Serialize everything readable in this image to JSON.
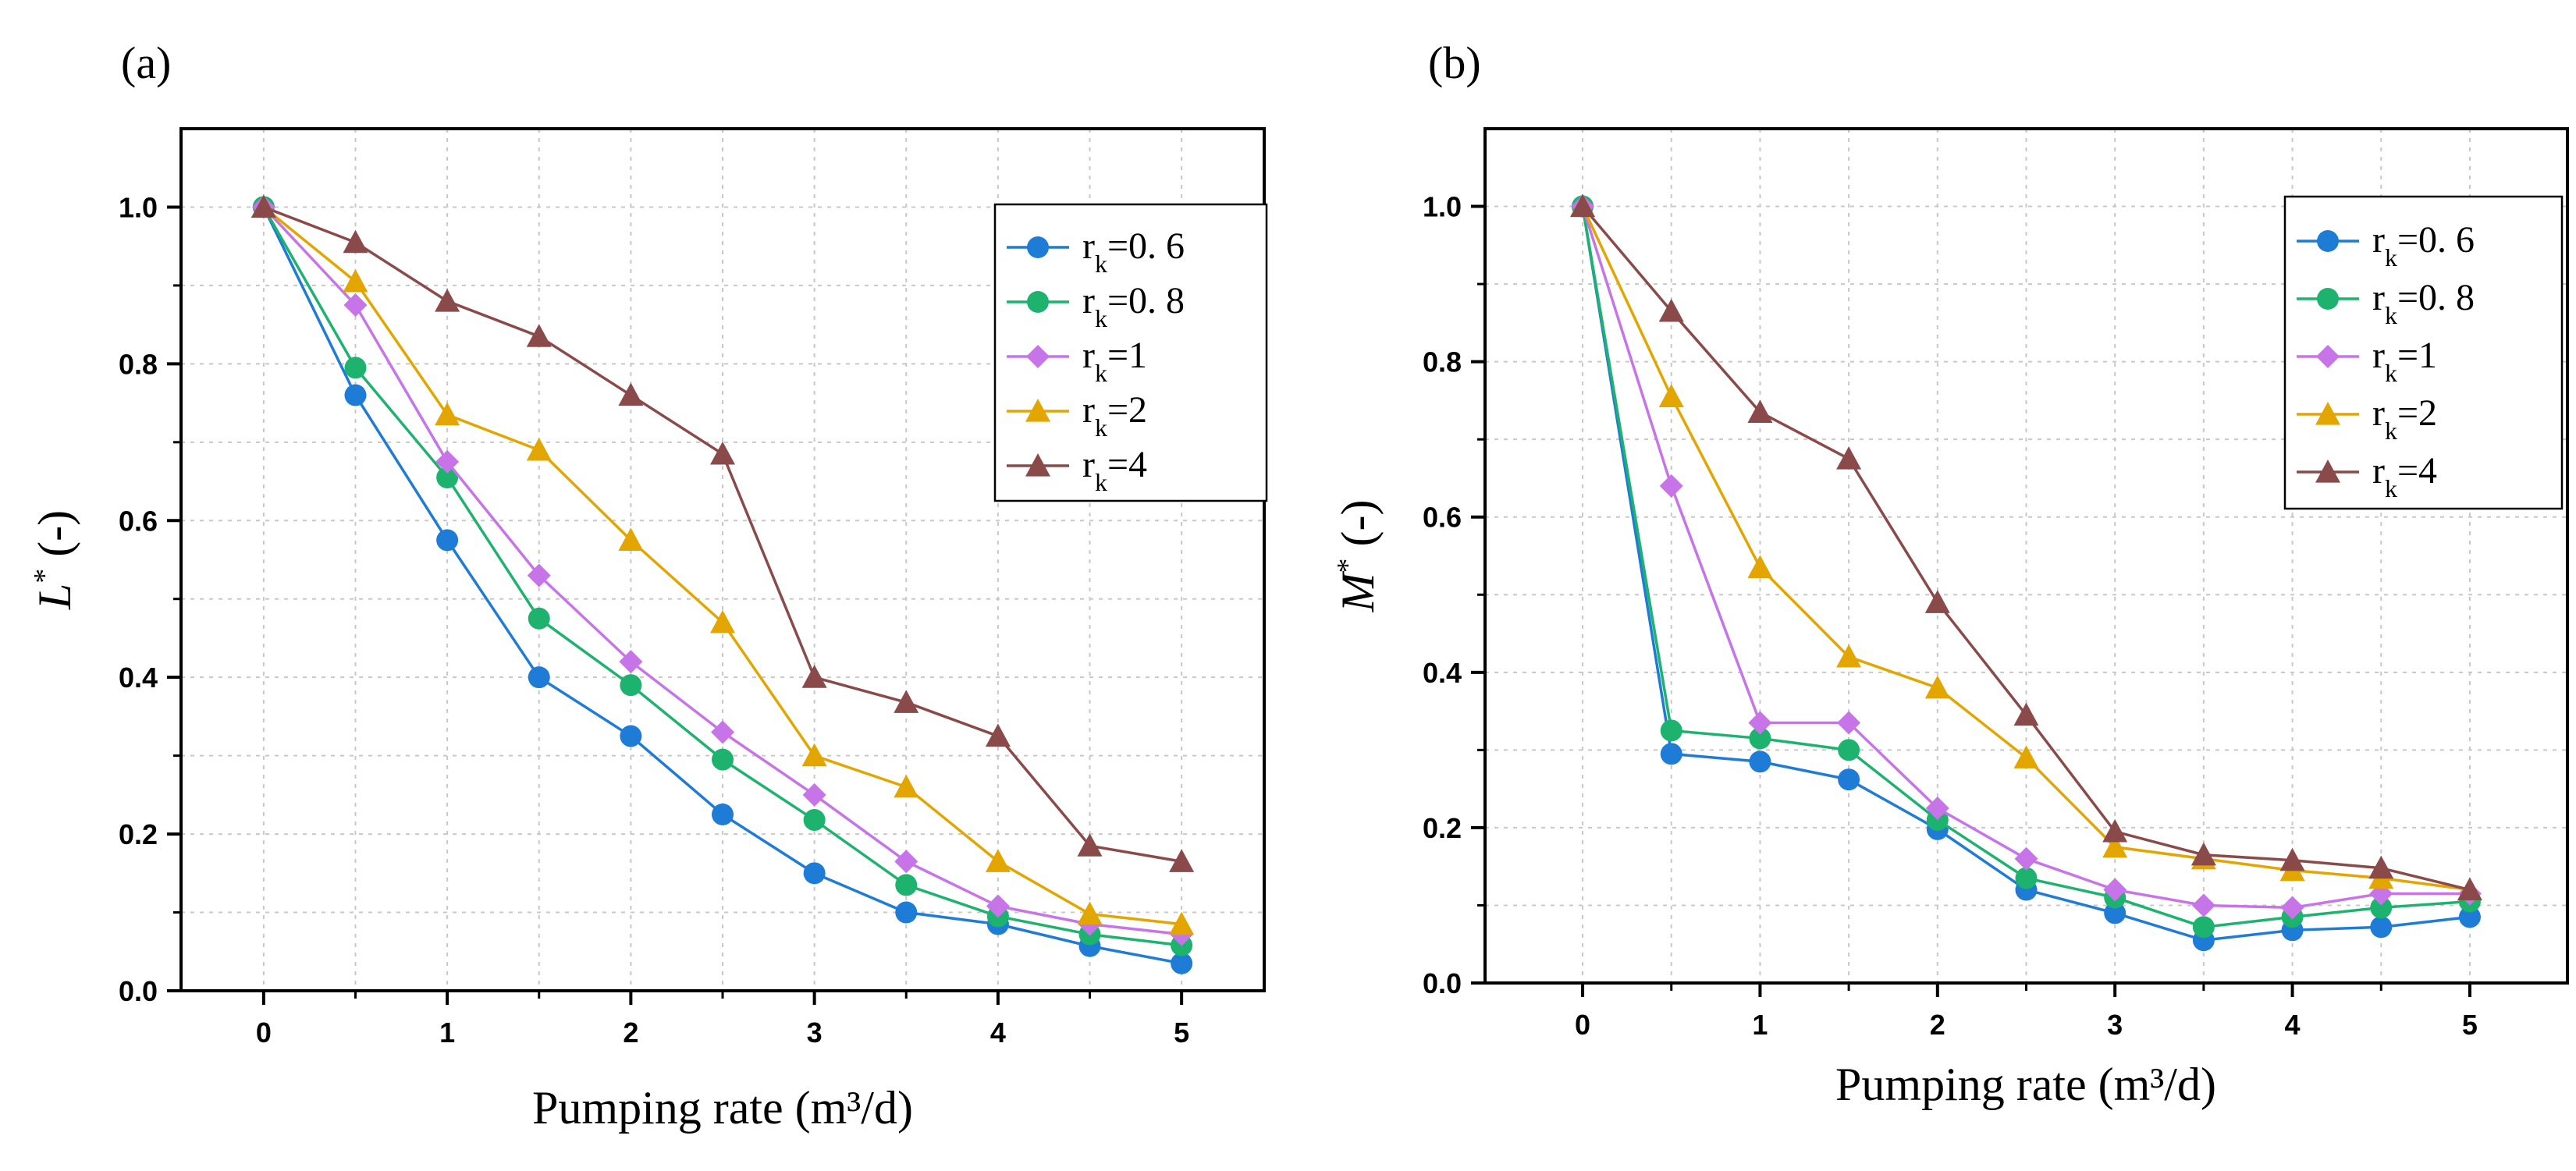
{
  "chart_data": [
    {
      "panel_label": "(a)",
      "type": "line",
      "xlabel": "Pumping rate (m³/d)",
      "ylabel_main": "L",
      "ylabel_sup": "*",
      "ylabel_rest": "(-)",
      "xlim": [
        -0.45,
        5.45
      ],
      "ylim": [
        0,
        1.1
      ],
      "x_ticks": [
        0,
        1,
        2,
        3,
        4,
        5
      ],
      "x_tick_labels": [
        "0",
        "1",
        "2",
        "3",
        "4",
        "5"
      ],
      "y_ticks": [
        0.0,
        0.2,
        0.4,
        0.6,
        0.8,
        1.0
      ],
      "y_tick_labels": [
        "0.0",
        "0.2",
        "0.4",
        "0.6",
        "0.8",
        "1.0"
      ],
      "grid": true,
      "legend_position": "top-right",
      "x": [
        0,
        0.5,
        1,
        1.5,
        2,
        2.5,
        3,
        3.5,
        4,
        4.5,
        5
      ],
      "series": [
        {
          "name_main": "r",
          "name_sub": "k",
          "name_rest": "=0. 6",
          "color": "#1e7bd6",
          "marker": "circle",
          "values": [
            1.0,
            0.76,
            0.575,
            0.4,
            0.325,
            0.225,
            0.15,
            0.1,
            0.085,
            0.057,
            0.035
          ]
        },
        {
          "name_main": "r",
          "name_sub": "k",
          "name_rest": "=0. 8",
          "color": "#1db36e",
          "marker": "circle",
          "values": [
            1.0,
            0.795,
            0.655,
            0.475,
            0.39,
            0.295,
            0.218,
            0.135,
            0.095,
            0.072,
            0.058
          ]
        },
        {
          "name_main": "r",
          "name_sub": "k",
          "name_rest": "=1",
          "color": "#c774e8",
          "marker": "diamond",
          "values": [
            1.0,
            0.875,
            0.675,
            0.53,
            0.42,
            0.33,
            0.25,
            0.165,
            0.108,
            0.085,
            0.072
          ]
        },
        {
          "name_main": "r",
          "name_sub": "k",
          "name_rest": "=2",
          "color": "#e3a600",
          "marker": "triangle",
          "values": [
            1.0,
            0.905,
            0.735,
            0.69,
            0.575,
            0.47,
            0.3,
            0.26,
            0.165,
            0.098,
            0.085
          ]
        },
        {
          "name_main": "r",
          "name_sub": "k",
          "name_rest": "=4",
          "color": "#8b4a4a",
          "marker": "triangle",
          "values": [
            1.0,
            0.955,
            0.88,
            0.835,
            0.76,
            0.685,
            0.4,
            0.368,
            0.325,
            0.185,
            0.165
          ]
        }
      ]
    },
    {
      "panel_label": "(b)",
      "type": "line",
      "xlabel": "Pumping rate (m³/d)",
      "ylabel_main": "M",
      "ylabel_sup": "*",
      "ylabel_rest": "(-)",
      "xlim": [
        -0.55,
        5.55
      ],
      "ylim": [
        0,
        1.1
      ],
      "x_ticks": [
        0,
        1,
        2,
        3,
        4,
        5
      ],
      "x_tick_labels": [
        "0",
        "1",
        "2",
        "3",
        "4",
        "5"
      ],
      "y_ticks": [
        0.0,
        0.2,
        0.4,
        0.6,
        0.8,
        1.0
      ],
      "y_tick_labels": [
        "0.0",
        "0.2",
        "0.4",
        "0.6",
        "0.8",
        "1.0"
      ],
      "grid": true,
      "legend_position": "top-right",
      "x": [
        0,
        0.5,
        1,
        1.5,
        2,
        2.5,
        3,
        3.5,
        4,
        4.5,
        5
      ],
      "series": [
        {
          "name_main": "r",
          "name_sub": "k",
          "name_rest": "=0. 6",
          "color": "#1e7bd6",
          "marker": "circle",
          "values": [
            1.0,
            0.295,
            0.285,
            0.262,
            0.198,
            0.12,
            0.09,
            0.055,
            0.068,
            0.072,
            0.085
          ]
        },
        {
          "name_main": "r",
          "name_sub": "k",
          "name_rest": "=0. 8",
          "color": "#1db36e",
          "marker": "circle",
          "values": [
            1.0,
            0.325,
            0.315,
            0.3,
            0.21,
            0.135,
            0.11,
            0.072,
            0.085,
            0.097,
            0.105
          ]
        },
        {
          "name_main": "r",
          "name_sub": "k",
          "name_rest": "=1",
          "color": "#c774e8",
          "marker": "diamond",
          "values": [
            1.0,
            0.64,
            0.335,
            0.335,
            0.225,
            0.16,
            0.12,
            0.1,
            0.097,
            0.115,
            0.115
          ]
        },
        {
          "name_main": "r",
          "name_sub": "k",
          "name_rest": "=2",
          "color": "#e3a600",
          "marker": "triangle",
          "values": [
            1.0,
            0.755,
            0.535,
            0.42,
            0.38,
            0.29,
            0.175,
            0.16,
            0.145,
            0.135,
            0.12
          ]
        },
        {
          "name_main": "r",
          "name_sub": "k",
          "name_rest": "=4",
          "color": "#8b4a4a",
          "marker": "triangle",
          "values": [
            1.0,
            0.865,
            0.735,
            0.675,
            0.49,
            0.345,
            0.195,
            0.165,
            0.158,
            0.148,
            0.12
          ]
        }
      ]
    }
  ]
}
